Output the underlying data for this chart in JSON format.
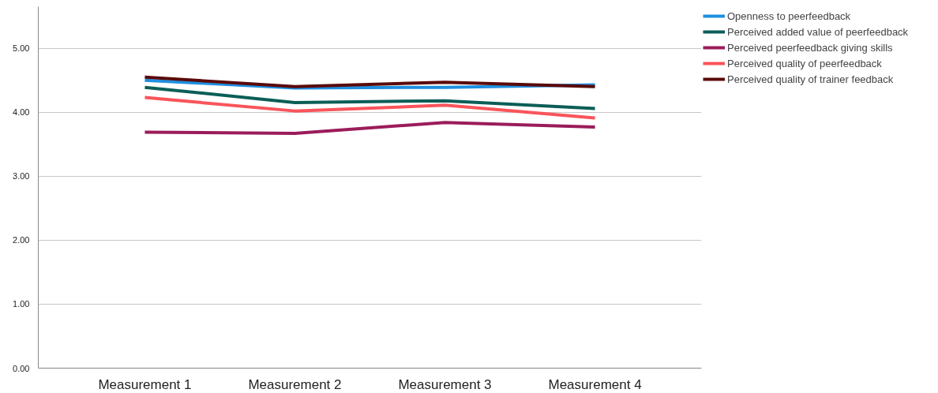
{
  "chart_data": {
    "type": "line",
    "categories": [
      "Measurement 1",
      "Measurement 2",
      "Measurement 3",
      "Measurement 4"
    ],
    "ylim": [
      0,
      5.65
    ],
    "yticks": [
      {
        "value": 0,
        "label": "0.00"
      },
      {
        "value": 1,
        "label": "1.00"
      },
      {
        "value": 2,
        "label": "2.00"
      },
      {
        "value": 3,
        "label": "3.00"
      },
      {
        "value": 4,
        "label": "4.00"
      },
      {
        "value": 5,
        "label": "5.00"
      }
    ],
    "grid": "y",
    "legend": "top right",
    "marker": "none",
    "line_style": "solid",
    "series": [
      {
        "name": "Openness to peerfeedback",
        "color": "#1f8fe0",
        "values": [
          4.5,
          4.38,
          4.39,
          4.43
        ]
      },
      {
        "name": "Perceived added value of peerfeedback",
        "color": "#0b5e57",
        "values": [
          4.39,
          4.15,
          4.18,
          4.06
        ]
      },
      {
        "name": "Perceived peerfeedback giving skills",
        "color": "#9b1c5a",
        "values": [
          3.69,
          3.67,
          3.84,
          3.77
        ]
      },
      {
        "name": "Perceived quality of peerfeedback",
        "color": "#f9545a",
        "values": [
          4.23,
          4.02,
          4.11,
          3.91
        ]
      },
      {
        "name": "Perceived quality of trainer feedback",
        "color": "#5a0a0a",
        "values": [
          4.55,
          4.4,
          4.47,
          4.4
        ]
      }
    ]
  }
}
